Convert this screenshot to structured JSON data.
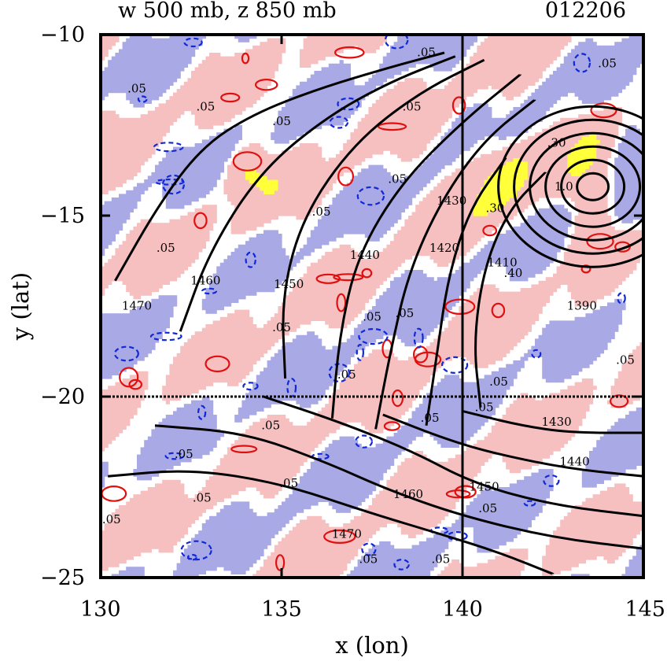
{
  "chart_data": {
    "type": "heatmap",
    "title_left": "w 500 mb, z 850 mb",
    "title_right": "012206",
    "xlabel": "x (lon)",
    "ylabel": "y (lat)",
    "xlim": [
      130,
      145
    ],
    "ylim": [
      -25,
      -10
    ],
    "x_ticks": [
      130,
      135,
      140,
      145
    ],
    "y_ticks": [
      -10,
      -15,
      -20,
      -25
    ],
    "x_tick_labels": [
      "130",
      "135",
      "140",
      "145"
    ],
    "y_tick_labels": [
      "−10",
      "−15",
      "−20",
      "−25"
    ],
    "grid_lines": {
      "x": [
        140
      ],
      "y": [
        -20
      ]
    },
    "colors": {
      "positive_fill": "#f7c0c0",
      "strong_positive_fill": "#ffff3a",
      "negative_fill": "#a9a9e6",
      "positive_contour": "#e01010",
      "negative_contour": "#1028d8",
      "height_contour": "#000000"
    },
    "height_contours": [
      {
        "level": 1470,
        "label": "1470",
        "points": [
          [
            130.4,
            -16.8
          ],
          [
            131.6,
            -14.7
          ],
          [
            132.8,
            -13.1
          ],
          [
            134.2,
            -12.2
          ],
          [
            136.0,
            -11.5
          ],
          [
            138.0,
            -10.9
          ],
          [
            139.5,
            -10.5
          ]
        ]
      },
      {
        "level": 1460,
        "label": "1460",
        "points": [
          [
            132.2,
            -18.2
          ],
          [
            133.0,
            -16.0
          ],
          [
            134.4,
            -13.8
          ],
          [
            136.2,
            -12.3
          ],
          [
            138.0,
            -11.3
          ],
          [
            139.8,
            -10.6
          ]
        ]
      },
      {
        "level": 1450,
        "label": "1450",
        "points": [
          [
            135.1,
            -19.5
          ],
          [
            135.0,
            -17.2
          ],
          [
            135.6,
            -15.0
          ],
          [
            137.0,
            -13.0
          ],
          [
            138.8,
            -11.6
          ],
          [
            140.6,
            -10.7
          ]
        ]
      },
      {
        "level": 1440,
        "label": "1440",
        "points": [
          [
            136.4,
            -20.6
          ],
          [
            136.6,
            -18.3
          ],
          [
            137.1,
            -16.1
          ],
          [
            138.3,
            -14.1
          ],
          [
            140.0,
            -12.4
          ],
          [
            141.6,
            -11.1
          ]
        ]
      },
      {
        "level": 1430,
        "label": "1430",
        "points": [
          [
            137.6,
            -20.9
          ],
          [
            138.0,
            -18.8
          ],
          [
            138.5,
            -16.6
          ],
          [
            139.4,
            -14.6
          ],
          [
            140.6,
            -12.9
          ],
          [
            142.0,
            -11.8
          ]
        ]
      },
      {
        "level": 1420,
        "label": "1420",
        "points": [
          [
            139.0,
            -20.8
          ],
          [
            139.3,
            -18.8
          ],
          [
            139.6,
            -16.7
          ],
          [
            140.2,
            -14.8
          ],
          [
            141.2,
            -13.4
          ]
        ]
      },
      {
        "level": 1410,
        "label": "1410",
        "points": [
          [
            140.5,
            -20.3
          ],
          [
            140.3,
            -18.5
          ],
          [
            140.6,
            -16.4
          ],
          [
            141.3,
            -14.8
          ],
          [
            142.3,
            -13.8
          ]
        ]
      },
      {
        "level": 1450,
        "label": "1450",
        "points": [
          [
            130.2,
            -22.2
          ],
          [
            132.5,
            -22.0
          ],
          [
            135.0,
            -22.4
          ],
          [
            137.4,
            -23.2
          ],
          [
            139.4,
            -23.8
          ],
          [
            141.0,
            -24.3
          ],
          [
            142.5,
            -24.9
          ]
        ]
      },
      {
        "level": 1460,
        "label": "1460",
        "points": [
          [
            131.5,
            -20.8
          ],
          [
            134.0,
            -21.0
          ],
          [
            136.2,
            -21.8
          ],
          [
            138.0,
            -22.6
          ],
          [
            140.0,
            -23.3
          ],
          [
            142.5,
            -23.9
          ],
          [
            145.0,
            -24.2
          ]
        ]
      },
      {
        "level": 1450,
        "label": "1450",
        "points": [
          [
            134.5,
            -20.0
          ],
          [
            136.6,
            -20.7
          ],
          [
            138.6,
            -21.5
          ],
          [
            140.3,
            -22.4
          ],
          [
            142.5,
            -23.0
          ],
          [
            145.0,
            -23.3
          ]
        ]
      },
      {
        "level": 1440,
        "label": "1440",
        "points": [
          [
            137.8,
            -20.5
          ],
          [
            139.6,
            -21.2
          ],
          [
            141.0,
            -21.6
          ],
          [
            143.0,
            -22.0
          ],
          [
            145.0,
            -22.2
          ]
        ]
      },
      {
        "level": 1430,
        "label": "1430",
        "points": [
          [
            140.0,
            -20.4
          ],
          [
            141.6,
            -20.8
          ],
          [
            143.0,
            -21.0
          ],
          [
            145.0,
            -21.0
          ]
        ]
      }
    ],
    "low_center": {
      "lon": 143.6,
      "lat": -14.2,
      "ring_count": 6
    },
    "contour_labels": [
      {
        "text": ".05",
        "lon": 131.0,
        "lat": -11.6
      },
      {
        "text": ".05",
        "lon": 132.9,
        "lat": -12.1
      },
      {
        "text": ".05",
        "lon": 135.0,
        "lat": -12.5
      },
      {
        "text": ".05",
        "lon": 138.6,
        "lat": -12.1
      },
      {
        "text": ".05",
        "lon": 139.0,
        "lat": -10.6
      },
      {
        "text": ".05",
        "lon": 138.2,
        "lat": -14.1
      },
      {
        "text": ".05",
        "lon": 136.1,
        "lat": -15.0
      },
      {
        "text": ".05",
        "lon": 131.8,
        "lat": -16.0
      },
      {
        "text": ".05",
        "lon": 135.0,
        "lat": -18.2
      },
      {
        "text": ".05",
        "lon": 137.5,
        "lat": -17.9
      },
      {
        "text": ".05",
        "lon": 138.4,
        "lat": -17.8
      },
      {
        "text": ".05",
        "lon": 136.8,
        "lat": -19.5
      },
      {
        "text": ".05",
        "lon": 141.0,
        "lat": -19.7
      },
      {
        "text": ".05",
        "lon": 140.6,
        "lat": -20.4
      },
      {
        "text": ".05",
        "lon": 139.1,
        "lat": -20.7
      },
      {
        "text": ".05",
        "lon": 134.7,
        "lat": -20.9
      },
      {
        "text": ".05",
        "lon": 132.3,
        "lat": -21.7
      },
      {
        "text": ".05",
        "lon": 135.2,
        "lat": -22.5
      },
      {
        "text": ".05",
        "lon": 132.8,
        "lat": -22.9
      },
      {
        "text": ".05",
        "lon": 130.3,
        "lat": -23.5
      },
      {
        "text": ".05",
        "lon": 140.7,
        "lat": -23.2
      },
      {
        "text": ".05",
        "lon": 139.4,
        "lat": -24.6
      },
      {
        "text": ".05",
        "lon": 137.4,
        "lat": -24.6
      },
      {
        "text": ".05",
        "lon": 144.5,
        "lat": -19.1
      },
      {
        "text": ".05",
        "lon": 144.0,
        "lat": -10.9
      },
      {
        "text": ".30",
        "lon": 140.9,
        "lat": -14.9
      },
      {
        "text": ".40",
        "lon": 141.4,
        "lat": -16.7
      },
      {
        "text": ".30",
        "lon": 142.6,
        "lat": -13.1
      },
      {
        "text": "1.0",
        "lon": 142.8,
        "lat": -14.3
      },
      {
        "text": "1390",
        "lon": 143.3,
        "lat": -17.6
      },
      {
        "text": "1410",
        "lon": 141.1,
        "lat": -16.4
      },
      {
        "text": "1420",
        "lon": 139.5,
        "lat": -16.0
      },
      {
        "text": "1430",
        "lon": 139.7,
        "lat": -14.7
      },
      {
        "text": "1440",
        "lon": 137.3,
        "lat": -16.2
      },
      {
        "text": "1450",
        "lon": 135.2,
        "lat": -17.0
      },
      {
        "text": "1460",
        "lon": 132.9,
        "lat": -16.9
      },
      {
        "text": "1470",
        "lon": 131.0,
        "lat": -17.6
      },
      {
        "text": "1430",
        "lon": 142.6,
        "lat": -20.8
      },
      {
        "text": "1440",
        "lon": 143.1,
        "lat": -21.9
      },
      {
        "text": "1450",
        "lon": 140.6,
        "lat": -22.6
      },
      {
        "text": "1460",
        "lon": 138.5,
        "lat": -22.8
      },
      {
        "text": "1470",
        "lon": 136.8,
        "lat": -23.9
      }
    ]
  }
}
